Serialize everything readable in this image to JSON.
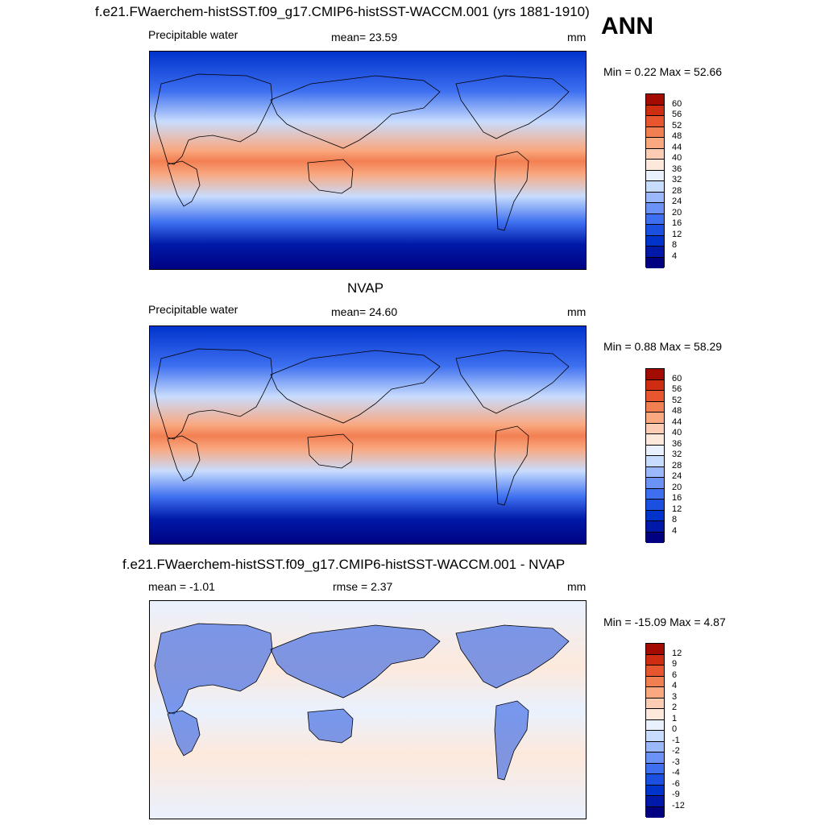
{
  "header": {
    "case_title": "f.e21.FWaerchem-histSST.f09_g17.CMIP6-histSST-WACCM.001 (yrs 1881-1910)",
    "season": "ANN"
  },
  "panels": [
    {
      "title": "",
      "left_label": "Precipitable water",
      "center_label": "mean=  23.59",
      "units": "mm",
      "minmax": "Min =   0.22 Max =  52.66",
      "colorbar_labels": [
        "60",
        "56",
        "52",
        "48",
        "44",
        "40",
        "36",
        "32",
        "28",
        "24",
        "20",
        "16",
        "12",
        "8",
        "4"
      ]
    },
    {
      "title": "NVAP",
      "left_label": "Precipitable water",
      "center_label": "mean=  24.60",
      "units": "mm",
      "minmax": "Min =   0.88 Max =  58.29",
      "colorbar_labels": [
        "60",
        "56",
        "52",
        "48",
        "44",
        "40",
        "36",
        "32",
        "28",
        "24",
        "20",
        "16",
        "12",
        "8",
        "4"
      ]
    },
    {
      "title": "f.e21.FWaerchem-histSST.f09_g17.CMIP6-histSST-WACCM.001 - NVAP",
      "left_label": "mean =  -1.01",
      "center_label": "rmse =   2.37",
      "units": "mm",
      "minmax": "Min = -15.09 Max =   4.87",
      "colorbar_labels": [
        "12",
        "9",
        "6",
        "4",
        "3",
        "2",
        "1",
        "0",
        "-1",
        "-2",
        "-3",
        "-4",
        "-6",
        "-9",
        "-12"
      ]
    }
  ],
  "colors": {
    "abs_scale": [
      "#000080",
      "#0019a8",
      "#0033cc",
      "#1a4fe0",
      "#3d6ff0",
      "#6b93f5",
      "#9ab8fa",
      "#c8dcfd",
      "#e9f1fe",
      "#fde9dc",
      "#fccdb2",
      "#f9a880",
      "#f27f52",
      "#e8562f",
      "#cf2d12",
      "#a30a00"
    ],
    "diff_scale": [
      "#000080",
      "#0019a8",
      "#0033cc",
      "#1a4fe0",
      "#3d6ff0",
      "#6b93f5",
      "#9ab8fa",
      "#c8dcfd",
      "#e9f1fe",
      "#fde9dc",
      "#fccdb2",
      "#f9a880",
      "#f27f52",
      "#e8562f",
      "#cf2d12",
      "#a30a00"
    ]
  }
}
